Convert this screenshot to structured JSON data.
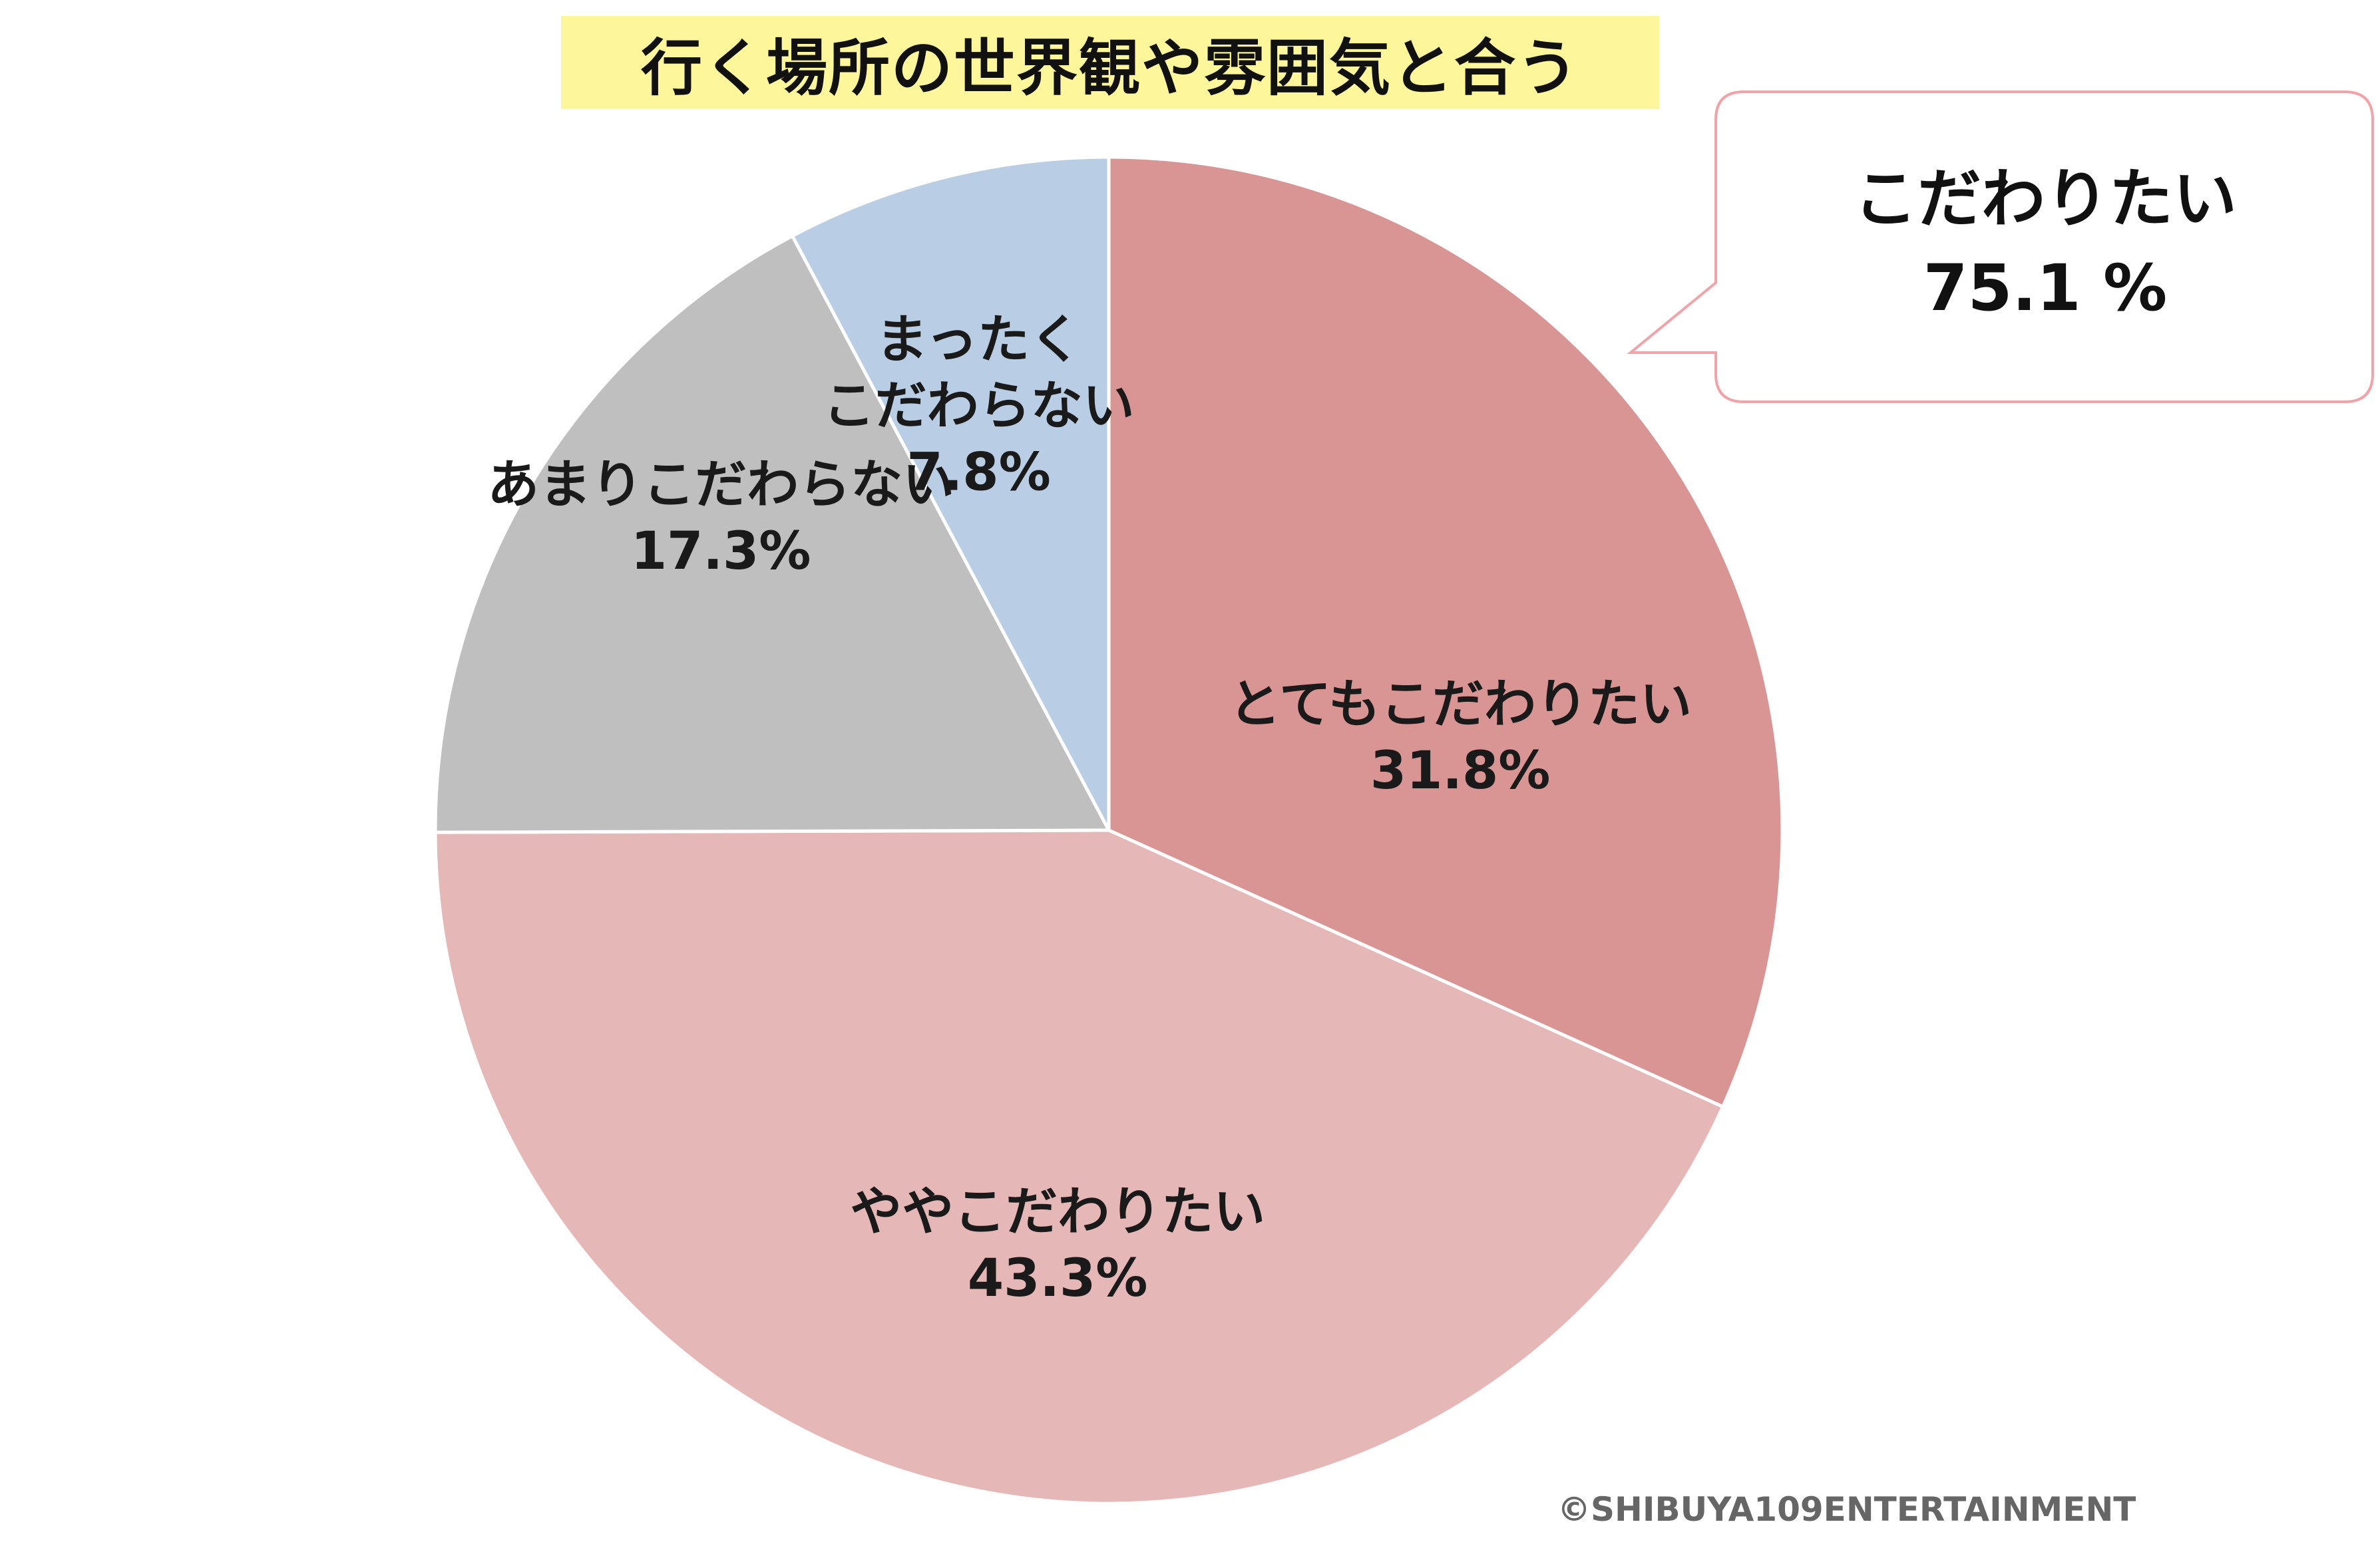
{
  "title": "行く場所の世界観や雰囲気と合う",
  "callout": {
    "label": "こだわりたい",
    "value": "75.1 %"
  },
  "copyright": "©SHIBUYA109ENTERTAINMENT",
  "chart_data": {
    "type": "pie",
    "title": "行く場所の世界観や雰囲気と合う",
    "start": "12 o'clock",
    "direction": "clockwise",
    "slices": [
      {
        "label_lines": [
          "とてもこだわりたい"
        ],
        "value": 31.8,
        "value_label": "31.8%",
        "color": "#d99594"
      },
      {
        "label_lines": [
          "ややこだわりたい"
        ],
        "value": 43.3,
        "value_label": "43.3%",
        "color": "#e6b7b7"
      },
      {
        "label_lines": [
          "あまりこだわらない"
        ],
        "value": 17.3,
        "value_label": "17.3%",
        "color": "#bfbfbf"
      },
      {
        "label_lines": [
          "まったく",
          "こだわらない"
        ],
        "value": 7.8,
        "value_label": "7.8%",
        "color": "#b9cde4"
      }
    ]
  }
}
